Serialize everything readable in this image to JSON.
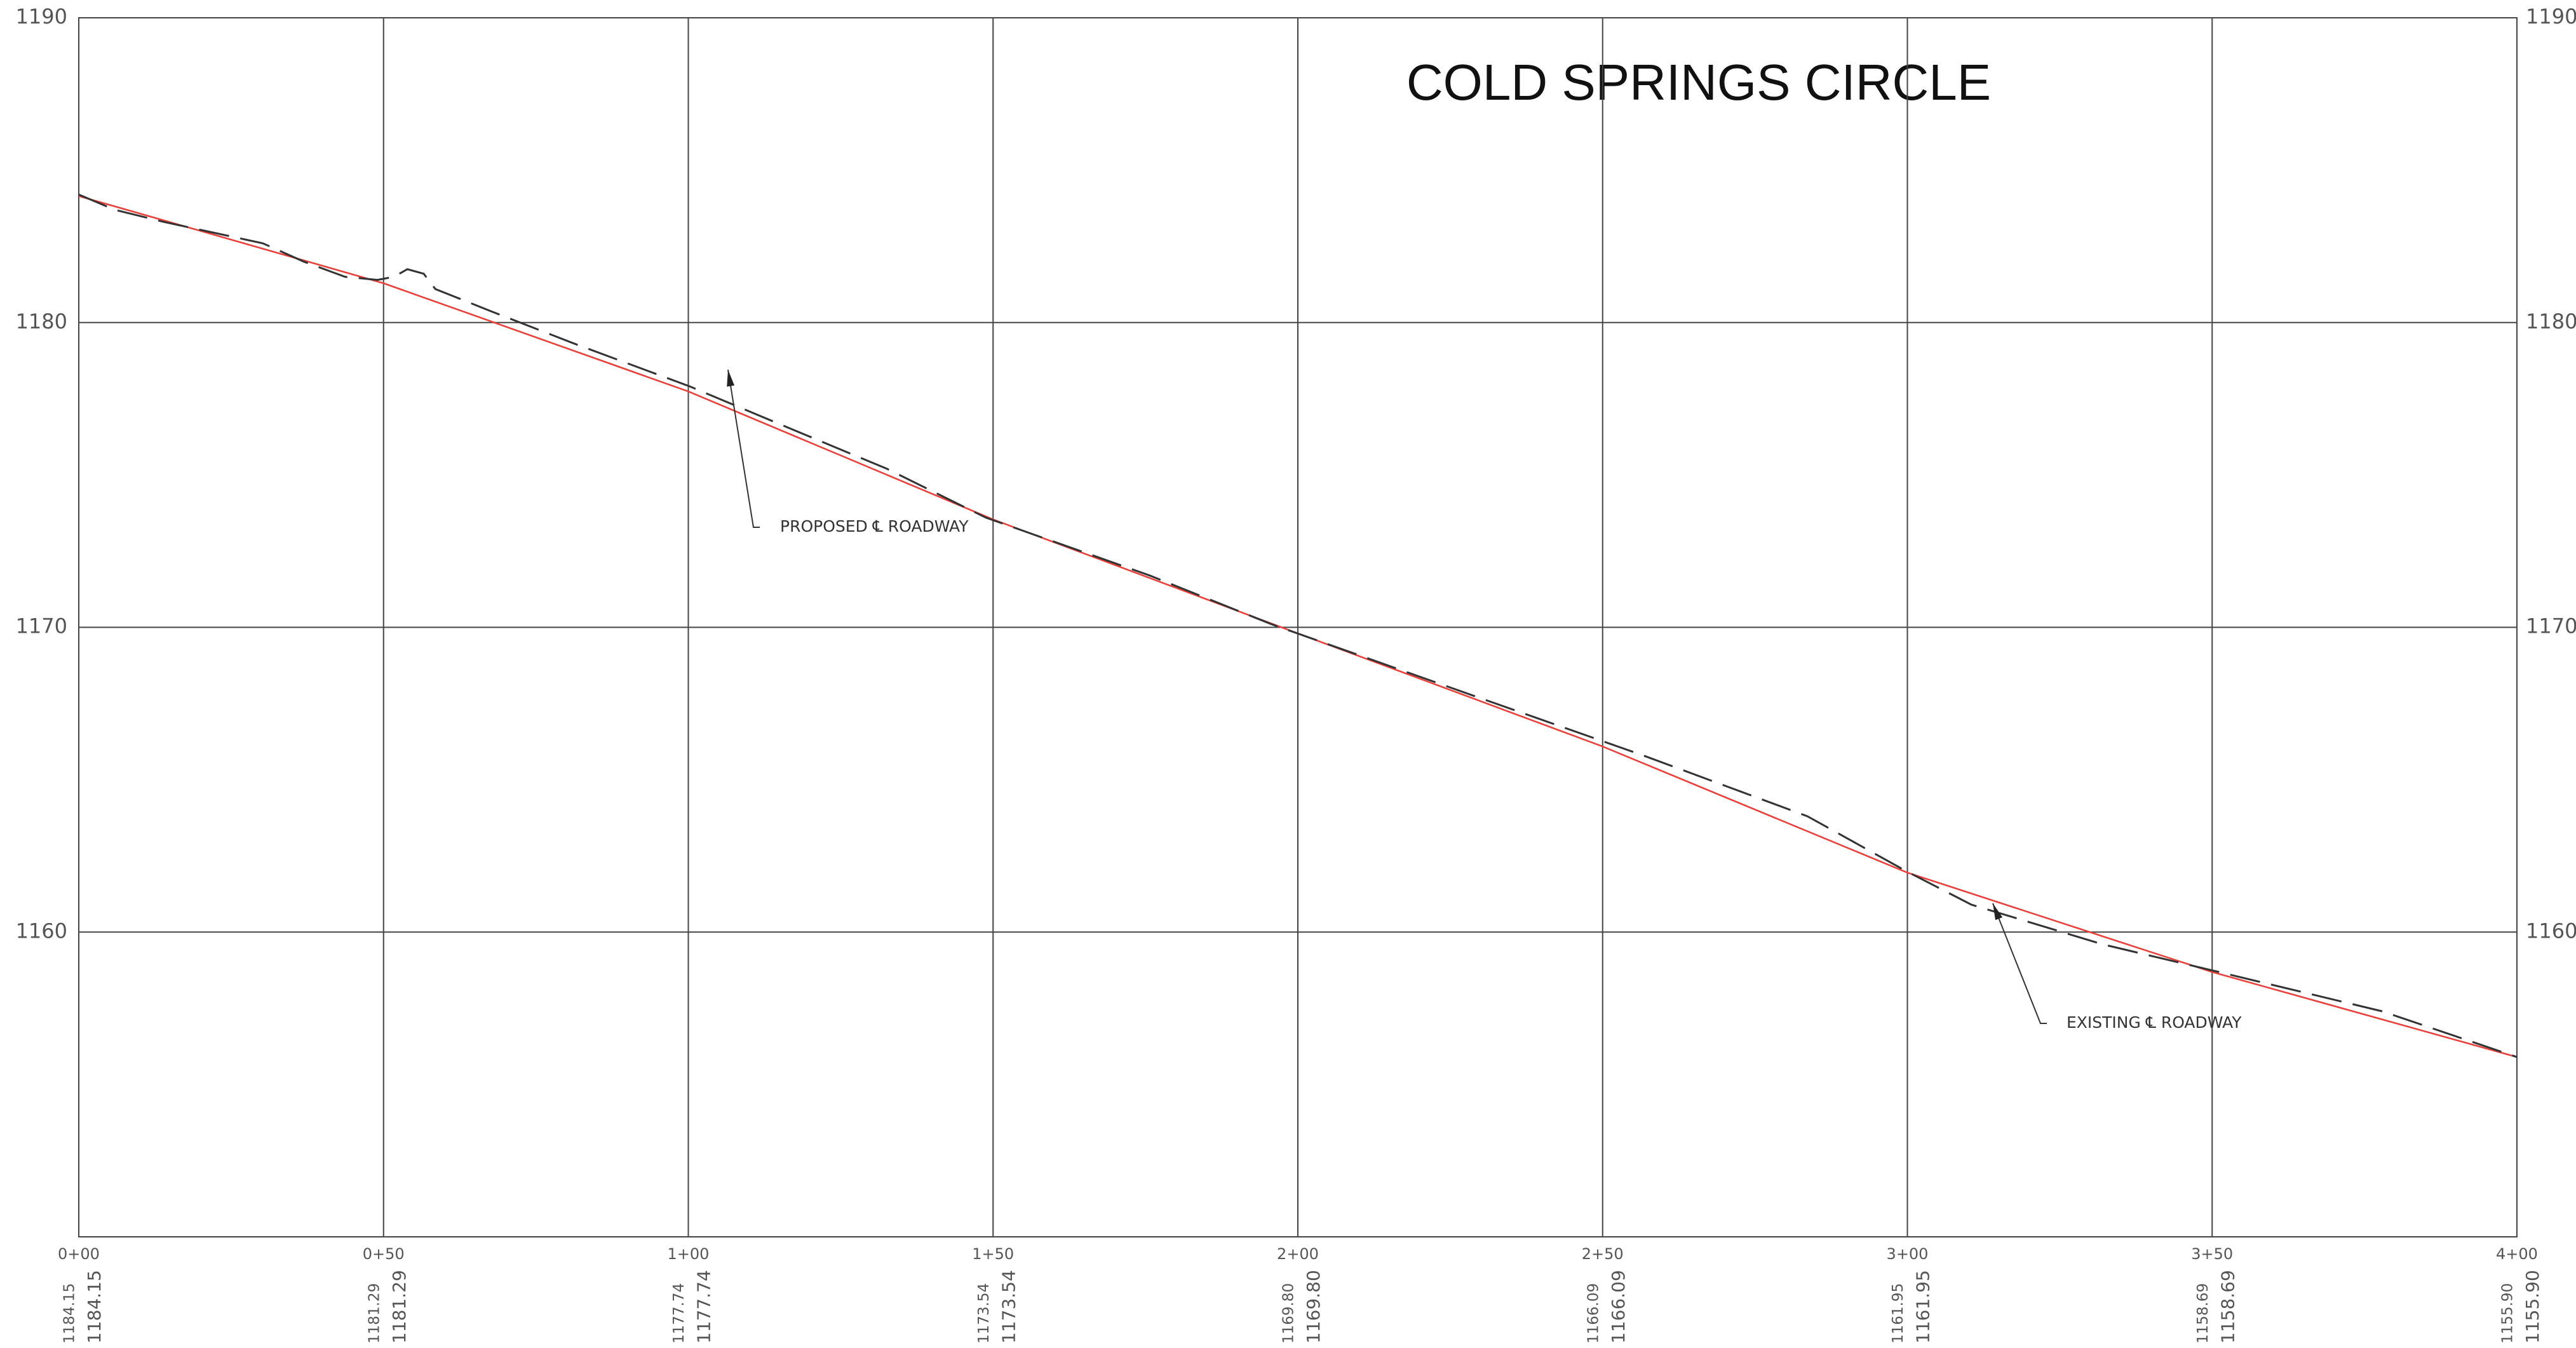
{
  "chart_data": {
    "type": "line",
    "title": "COLD SPRINGS CIRCLE",
    "xlim": [
      0,
      400
    ],
    "xticks": [
      {
        "value": 0,
        "label": "0+00"
      },
      {
        "value": 50,
        "label": "0+50"
      },
      {
        "value": 100,
        "label": "1+00"
      },
      {
        "value": 150,
        "label": "1+50"
      },
      {
        "value": 200,
        "label": "2+00"
      },
      {
        "value": 250,
        "label": "2+50"
      },
      {
        "value": 300,
        "label": "3+00"
      },
      {
        "value": 350,
        "label": "3+50"
      },
      {
        "value": 400,
        "label": "4+00"
      }
    ],
    "ylim": [
      1150,
      1190
    ],
    "yticks": [
      1160,
      1170,
      1180,
      1190
    ],
    "grid": true,
    "series": [
      {
        "color": "#e8403a",
        "dash": false,
        "x": [
          0,
          50,
          100,
          150,
          200,
          250,
          300,
          350,
          400
        ],
        "values": [
          1184.15,
          1181.29,
          1177.74,
          1173.54,
          1169.8,
          1166.09,
          1161.95,
          1158.69,
          1155.9
        ],
        "value_labels": [
          "1184.15",
          "1181.29",
          "1177.74",
          "1173.54",
          "1169.80",
          "1166.09",
          "1161.95",
          "1158.69",
          "1155.90"
        ]
      },
      {
        "color": "#333333",
        "dash": true,
        "x": [
          0,
          5.9,
          14,
          30.2,
          36.9,
          43.7,
          49,
          51.7,
          53.9,
          56.6,
          58.5,
          67.9,
          81.4,
          100.3,
          111,
          132.6,
          148.8,
          175.7,
          195.7,
          229.6,
          256.6,
          283.6,
          299.8,
          310.5,
          332,
          350.9,
          377.9,
          400
        ],
        "values": [
          1184.2,
          1183.7,
          1183.3,
          1182.6,
          1182.0,
          1181.5,
          1181.4,
          1181.5,
          1181.75,
          1181.6,
          1181.1,
          1180.35,
          1179.3,
          1177.9,
          1177.0,
          1175.2,
          1173.6,
          1171.7,
          1170.1,
          1167.7,
          1165.8,
          1163.8,
          1162.0,
          1160.9,
          1159.6,
          1158.7,
          1157.4,
          1155.9
        ]
      }
    ],
    "annotations": [
      "PROPOSED ℄ ROADWAY",
      "EXISTING ℄ ROADWAY"
    ]
  }
}
